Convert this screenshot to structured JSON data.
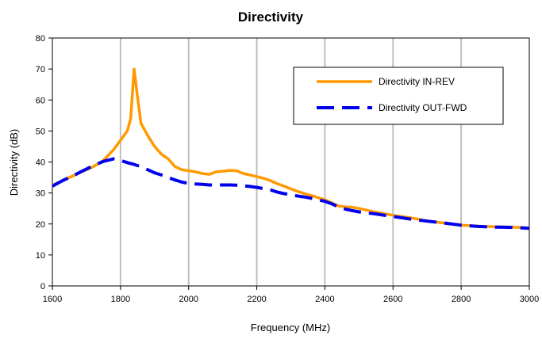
{
  "chart_data": {
    "type": "line",
    "title": "Directivity",
    "xlabel": "Frequency (MHz)",
    "ylabel": "Directivity (dB)",
    "xlim": [
      1600,
      3000
    ],
    "ylim": [
      0,
      80
    ],
    "xticks": [
      1600,
      1800,
      2000,
      2200,
      2400,
      2600,
      2800,
      3000
    ],
    "yticks": [
      0,
      10,
      20,
      30,
      40,
      50,
      60,
      70,
      80
    ],
    "grid": "vertical",
    "legend_position": "top-right",
    "series": [
      {
        "name": "Directivity IN-REV",
        "color": "#FF9900",
        "style": "solid",
        "x": [
          1600,
          1630,
          1660,
          1690,
          1720,
          1750,
          1780,
          1800,
          1820,
          1830,
          1840,
          1850,
          1860,
          1880,
          1900,
          1920,
          1940,
          1960,
          1980,
          2000,
          2020,
          2040,
          2060,
          2080,
          2100,
          2120,
          2140,
          2160,
          2180,
          2200,
          2220,
          2240,
          2260,
          2280,
          2300,
          2320,
          2340,
          2360,
          2380,
          2400,
          2420,
          2440,
          2460,
          2480,
          2500,
          2550,
          2600,
          2650,
          2700,
          2750,
          2800,
          2850,
          2900,
          2950,
          3000
        ],
        "y": [
          32.5,
          34,
          35.5,
          37,
          38.5,
          40.5,
          44,
          47,
          50,
          54,
          70,
          61,
          52.5,
          48.5,
          45,
          42.5,
          41,
          38.5,
          37.5,
          37.2,
          36.8,
          36.3,
          36,
          36.8,
          37,
          37.3,
          37.2,
          36.3,
          35.8,
          35.3,
          34.7,
          34,
          33,
          32.2,
          31.3,
          30.5,
          29.8,
          29.2,
          28.5,
          27.8,
          26.8,
          25.8,
          25.5,
          25.4,
          25,
          23.8,
          22.8,
          22,
          21,
          20.3,
          19.6,
          19.3,
          19.1,
          19,
          18.7
        ]
      },
      {
        "name": "Directivity OUT-FWD",
        "color": "#0000EE",
        "style": "dashed",
        "x": [
          1600,
          1630,
          1660,
          1690,
          1720,
          1750,
          1780,
          1800,
          1820,
          1840,
          1860,
          1880,
          1900,
          1920,
          1940,
          1960,
          1980,
          2000,
          2020,
          2040,
          2060,
          2080,
          2100,
          2120,
          2140,
          2160,
          2180,
          2200,
          2220,
          2240,
          2260,
          2280,
          2300,
          2320,
          2340,
          2360,
          2380,
          2400,
          2420,
          2440,
          2460,
          2480,
          2500,
          2550,
          2600,
          2650,
          2700,
          2750,
          2800,
          2850,
          2900,
          2950,
          3000
        ],
        "y": [
          32.2,
          34,
          35.5,
          37.2,
          38.8,
          40.2,
          41,
          40.5,
          39.8,
          39.2,
          38.5,
          37.5,
          36.5,
          35.8,
          35,
          34.2,
          33.5,
          33.1,
          32.9,
          32.8,
          32.6,
          32.6,
          32.6,
          32.6,
          32.5,
          32.3,
          32.1,
          31.8,
          31.4,
          31,
          30.3,
          29.8,
          29.4,
          29,
          28.7,
          28.3,
          27.8,
          27.3,
          26.5,
          25.5,
          24.8,
          24.3,
          23.9,
          23.2,
          22.4,
          21.6,
          20.9,
          20.3,
          19.6,
          19.2,
          19,
          18.9,
          18.6
        ]
      }
    ]
  }
}
